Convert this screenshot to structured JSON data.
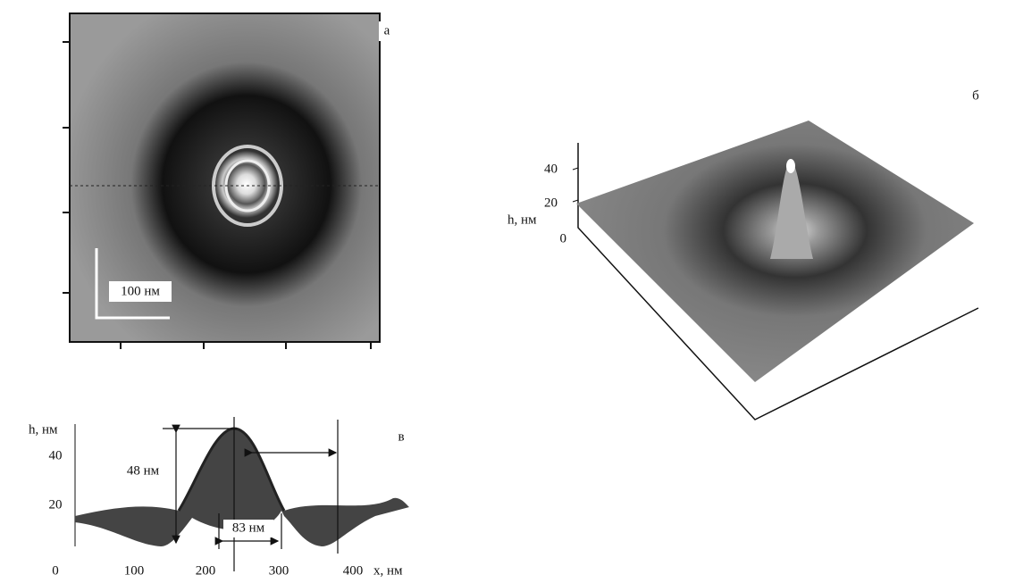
{
  "panel_a": {
    "label": "а",
    "scale_bar": "100 нм"
  },
  "panel_b": {
    "label": "б",
    "axis_label": "h, нм",
    "ticks": [
      "40",
      "20",
      "0"
    ]
  },
  "panel_v": {
    "label": "в",
    "y_axis_label": "h, нм",
    "x_axis_label": "x, нм",
    "y_ticks": [
      "40",
      "20"
    ],
    "x_ticks": [
      "0",
      "100",
      "200",
      "300",
      "400"
    ],
    "height_annotation": "48 нм",
    "width_annotation": "83 нм"
  }
}
